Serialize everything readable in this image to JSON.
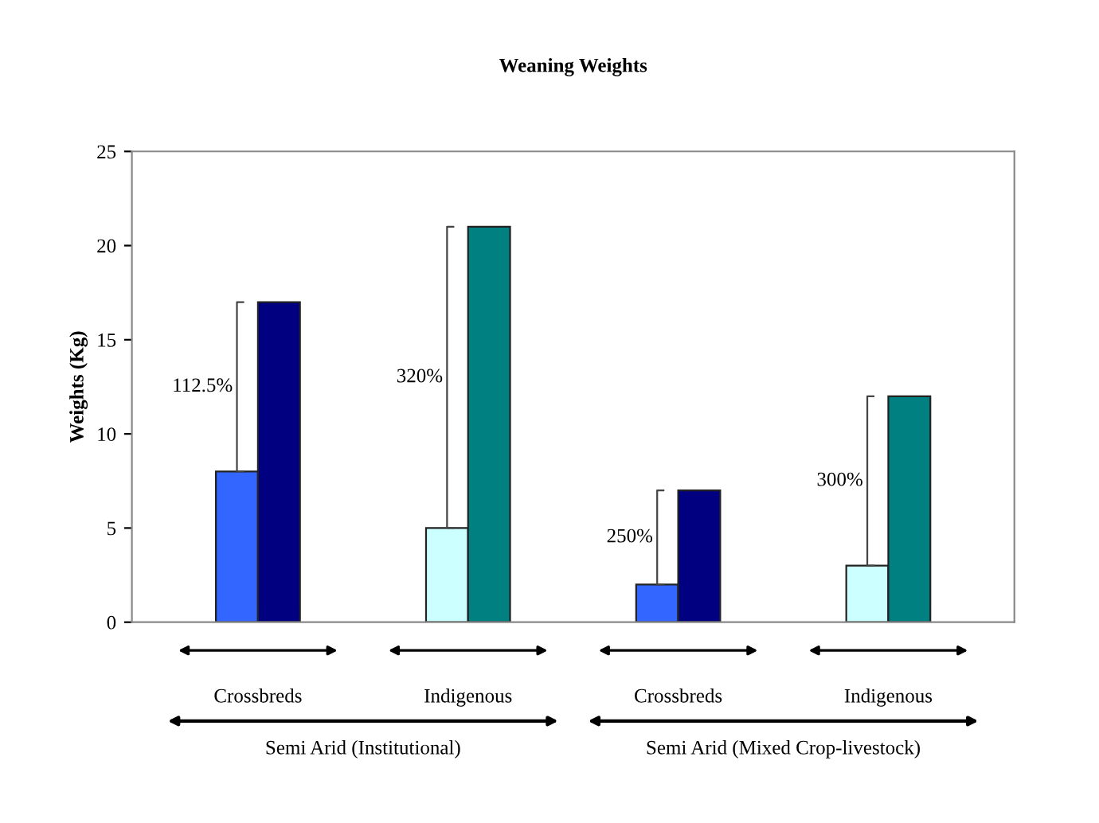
{
  "chart_data": {
    "type": "bar",
    "title": "Weaning Weights",
    "ylabel": "Weights (Kg)",
    "categories": [
      "Crossbreds",
      "Indigenous",
      "Crossbreds",
      "Indigenous"
    ],
    "series": [
      {
        "colors": [
          "#3366ff",
          "#ccffff",
          "#3366ff",
          "#ccffff"
        ],
        "values": [
          8,
          5,
          2,
          3
        ]
      },
      {
        "colors": [
          "#000080",
          "#008080",
          "#000080",
          "#008080"
        ],
        "values": [
          17,
          21,
          7,
          12
        ]
      }
    ],
    "annotations": [
      "112.5%",
      "320%",
      "250%",
      "300%",
      "Semi Arid (Institutional)",
      "Semi Arid (Mixed Crop-livestock)"
    ],
    "ylim": [
      0,
      25
    ],
    "yticks": [
      0,
      5,
      10,
      15,
      20,
      25
    ],
    "grid": false,
    "legend": false
  }
}
